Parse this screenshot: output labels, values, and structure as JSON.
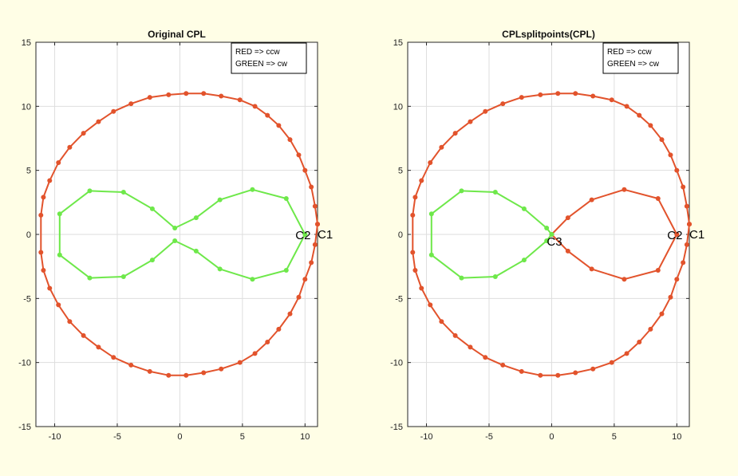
{
  "colors": {
    "ccw": "#e2532c",
    "cw": "#6ee84a",
    "background": "#fffee6",
    "axes_background": "#ffffff",
    "grid": "#dedede",
    "frame": "#262626"
  },
  "chart_data": [
    {
      "type": "line",
      "title": "Original CPL",
      "xlabel": "",
      "ylabel": "",
      "xlim": [
        -11.5,
        11.0
      ],
      "ylim": [
        -15,
        15
      ],
      "grid": true,
      "xticks": [
        -10,
        -5,
        0,
        5,
        10
      ],
      "yticks": [
        -15,
        -10,
        -5,
        0,
        5,
        10,
        15
      ],
      "legend": {
        "location": "top-right",
        "entries": [
          "RED => ccw",
          "GREEN => cw"
        ]
      },
      "series": [
        {
          "color": "#e2532c",
          "x": [
            11.0,
            10.8,
            10.5,
            10.0,
            9.5,
            8.8,
            7.9,
            7.0,
            6.0,
            4.8,
            3.3,
            1.9,
            0.5,
            -0.9,
            -2.4,
            -3.9,
            -5.3,
            -6.5,
            -7.7,
            -8.8,
            -9.7,
            -10.4,
            -10.9,
            -11.1,
            -11.1,
            -10.9,
            -10.4,
            -9.7,
            -8.8,
            -7.7,
            -6.5,
            -5.3,
            -3.9,
            -2.4,
            -0.9,
            0.5,
            1.9,
            3.3,
            4.8,
            6.0,
            7.0,
            7.9,
            8.8,
            9.5,
            10.0,
            10.5,
            10.8,
            11.0
          ],
          "y": [
            0.8,
            2.2,
            3.7,
            5.0,
            6.2,
            7.4,
            8.5,
            9.3,
            10.0,
            10.5,
            10.8,
            11.0,
            11.0,
            10.9,
            10.7,
            10.2,
            9.6,
            8.8,
            7.9,
            6.8,
            5.6,
            4.2,
            2.9,
            1.5,
            -1.4,
            -2.8,
            -4.2,
            -5.5,
            -6.8,
            -7.9,
            -8.8,
            -9.6,
            -10.2,
            -10.7,
            -11.0,
            -11.0,
            -10.8,
            -10.5,
            -10.0,
            -9.3,
            -8.4,
            -7.4,
            -6.2,
            -4.9,
            -3.5,
            -2.2,
            -0.8,
            0.8
          ],
          "label": "C1"
        },
        {
          "color": "#6ee84a",
          "x": [
            10.0,
            8.5,
            5.8,
            3.2,
            1.3,
            -0.4,
            -2.2,
            -4.5,
            -7.2,
            -9.6,
            -9.6,
            -7.2,
            -4.5,
            -2.2,
            -0.4,
            1.3,
            3.2,
            5.8,
            8.5,
            10.0
          ],
          "y": [
            0.0,
            2.8,
            3.5,
            2.7,
            1.3,
            0.5,
            2.0,
            3.3,
            3.4,
            1.6,
            -1.6,
            -3.4,
            -3.3,
            -2.0,
            -0.5,
            -1.3,
            -2.7,
            -3.5,
            -2.8,
            0.0
          ],
          "label": "C2"
        }
      ]
    },
    {
      "type": "line",
      "title": "CPLsplitpoints(CPL)",
      "xlabel": "",
      "ylabel": "",
      "xlim": [
        -11.5,
        11.0
      ],
      "ylim": [
        -15,
        15
      ],
      "grid": true,
      "xticks": [
        -10,
        -5,
        0,
        5,
        10
      ],
      "yticks": [
        -15,
        -10,
        -5,
        0,
        5,
        10,
        15
      ],
      "legend": {
        "location": "top-right",
        "entries": [
          "RED => ccw",
          "GREEN => cw"
        ]
      },
      "series": [
        {
          "color": "#e2532c",
          "x": [
            11.0,
            10.8,
            10.5,
            10.0,
            9.5,
            8.8,
            7.9,
            7.0,
            6.0,
            4.8,
            3.3,
            1.9,
            0.5,
            -0.9,
            -2.4,
            -3.9,
            -5.3,
            -6.5,
            -7.7,
            -8.8,
            -9.7,
            -10.4,
            -10.9,
            -11.1,
            -11.1,
            -10.9,
            -10.4,
            -9.7,
            -8.8,
            -7.7,
            -6.5,
            -5.3,
            -3.9,
            -2.4,
            -0.9,
            0.5,
            1.9,
            3.3,
            4.8,
            6.0,
            7.0,
            7.9,
            8.8,
            9.5,
            10.0,
            10.5,
            10.8,
            11.0
          ],
          "y": [
            0.8,
            2.2,
            3.7,
            5.0,
            6.2,
            7.4,
            8.5,
            9.3,
            10.0,
            10.5,
            10.8,
            11.0,
            11.0,
            10.9,
            10.7,
            10.2,
            9.6,
            8.8,
            7.9,
            6.8,
            5.6,
            4.2,
            2.9,
            1.5,
            -1.4,
            -2.8,
            -4.2,
            -5.5,
            -6.8,
            -7.9,
            -8.8,
            -9.6,
            -10.2,
            -10.7,
            -11.0,
            -11.0,
            -10.8,
            -10.5,
            -10.0,
            -9.3,
            -8.4,
            -7.4,
            -6.2,
            -4.9,
            -3.5,
            -2.2,
            -0.8,
            0.8
          ],
          "label": "C1"
        },
        {
          "color": "#e2532c",
          "x": [
            10.0,
            8.5,
            5.8,
            3.2,
            1.3,
            0.0,
            1.3,
            3.2,
            5.8,
            8.5,
            10.0
          ],
          "y": [
            0.0,
            2.8,
            3.5,
            2.7,
            1.3,
            0.0,
            -1.3,
            -2.7,
            -3.5,
            -2.8,
            0.0
          ],
          "label": "C2"
        },
        {
          "color": "#6ee84a",
          "x": [
            0.0,
            -0.4,
            -2.2,
            -4.5,
            -7.2,
            -9.6,
            -9.6,
            -7.2,
            -4.5,
            -2.2,
            -0.4,
            0.0
          ],
          "y": [
            0.0,
            0.5,
            2.0,
            3.3,
            3.4,
            1.6,
            -1.6,
            -3.4,
            -3.3,
            -2.0,
            -0.5,
            0.0
          ],
          "label": "C3"
        }
      ]
    }
  ]
}
